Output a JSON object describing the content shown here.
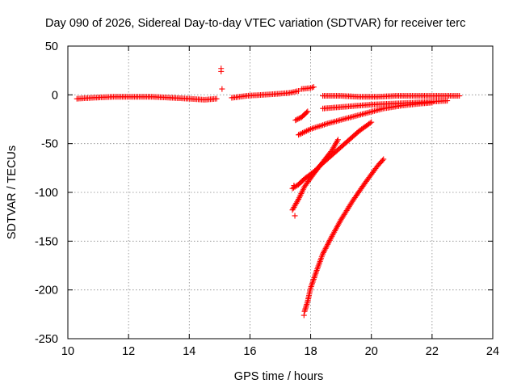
{
  "chart_data": {
    "type": "scatter",
    "title": "Day 090 of 2026, Sidereal Day-to-day VTEC variation (SDTVAR) for receiver terc",
    "xlabel": "GPS time / hours",
    "ylabel": "SDTVAR / TECUs",
    "xlim": [
      10,
      24
    ],
    "ylim": [
      -250,
      50
    ],
    "xticks": [
      10,
      12,
      14,
      16,
      18,
      20,
      22,
      24
    ],
    "yticks": [
      -250,
      -200,
      -150,
      -100,
      -50,
      0,
      50
    ],
    "xtick_labels": [
      "10",
      "12",
      "14",
      "16",
      "18",
      "20",
      "22",
      "24"
    ],
    "ytick_labels": [
      "-250",
      "-200",
      "-150",
      "-100",
      "-50",
      "0",
      "50"
    ],
    "grid": true,
    "marker": "+",
    "color": "#ff0000",
    "series": [
      {
        "name": "band-a",
        "x": [
          10.3,
          10.8,
          11.5,
          12.2,
          12.8,
          13.4,
          14.0,
          14.5,
          14.9
        ],
        "y": [
          -4,
          -3,
          -2,
          -2,
          -2,
          -3,
          -4,
          -5,
          -4
        ]
      },
      {
        "name": "band-b",
        "x": [
          15.4,
          15.9,
          16.4,
          16.9,
          17.3,
          17.6
        ],
        "y": [
          -3,
          -1,
          0,
          1,
          2,
          4
        ]
      },
      {
        "name": "band-c",
        "x": [
          17.7,
          18.0,
          18.1
        ],
        "y": [
          6,
          7,
          8
        ]
      },
      {
        "name": "band-d",
        "x": [
          18.4,
          19.0,
          19.6,
          20.2,
          20.8,
          21.4,
          22.0,
          22.5,
          22.9
        ],
        "y": [
          -1,
          -1,
          -2,
          -2,
          -1,
          -1,
          -1,
          -1,
          -1
        ]
      },
      {
        "name": "band-e",
        "x": [
          18.4,
          19.2,
          20.0,
          20.7,
          21.4,
          22.0,
          22.5
        ],
        "y": [
          -14,
          -12,
          -10,
          -9,
          -8,
          -7,
          -6
        ]
      },
      {
        "name": "band-f",
        "x": [
          17.6,
          18.0,
          18.6,
          19.2,
          19.8,
          20.4,
          21.0,
          21.6,
          22.0
        ],
        "y": [
          -41,
          -35,
          -29,
          -24,
          -19,
          -14,
          -11,
          -9,
          -8
        ]
      },
      {
        "name": "band-g",
        "x": [
          17.4,
          17.6,
          17.8,
          18.1,
          18.4,
          18.8,
          19.2,
          19.6,
          20.0
        ],
        "y": [
          -96,
          -92,
          -86,
          -79,
          -70,
          -59,
          -48,
          -37,
          -28
        ]
      },
      {
        "name": "band-h",
        "x": [
          17.4,
          17.6,
          17.8,
          18.1,
          18.4,
          18.7,
          18.9
        ],
        "y": [
          -118,
          -107,
          -94,
          -81,
          -69,
          -57,
          -46
        ]
      },
      {
        "name": "band-i",
        "x": [
          17.8,
          17.9,
          18.0,
          18.2,
          18.4,
          18.7,
          19.0,
          19.4,
          19.8,
          20.2,
          20.4
        ],
        "y": [
          -222,
          -212,
          -198,
          -180,
          -163,
          -145,
          -128,
          -108,
          -90,
          -73,
          -66
        ]
      },
      {
        "name": "band-j",
        "x": [
          17.5,
          17.7,
          17.8,
          17.9
        ],
        "y": [
          -26,
          -23,
          -20,
          -17
        ]
      },
      {
        "name": "spike",
        "x": [
          15.05,
          15.05,
          15.08
        ],
        "y": [
          27,
          24,
          6
        ]
      },
      {
        "name": "stray",
        "x": [
          17.45,
          17.48,
          17.78
        ],
        "y": [
          -93,
          -124,
          -226
        ]
      }
    ]
  }
}
